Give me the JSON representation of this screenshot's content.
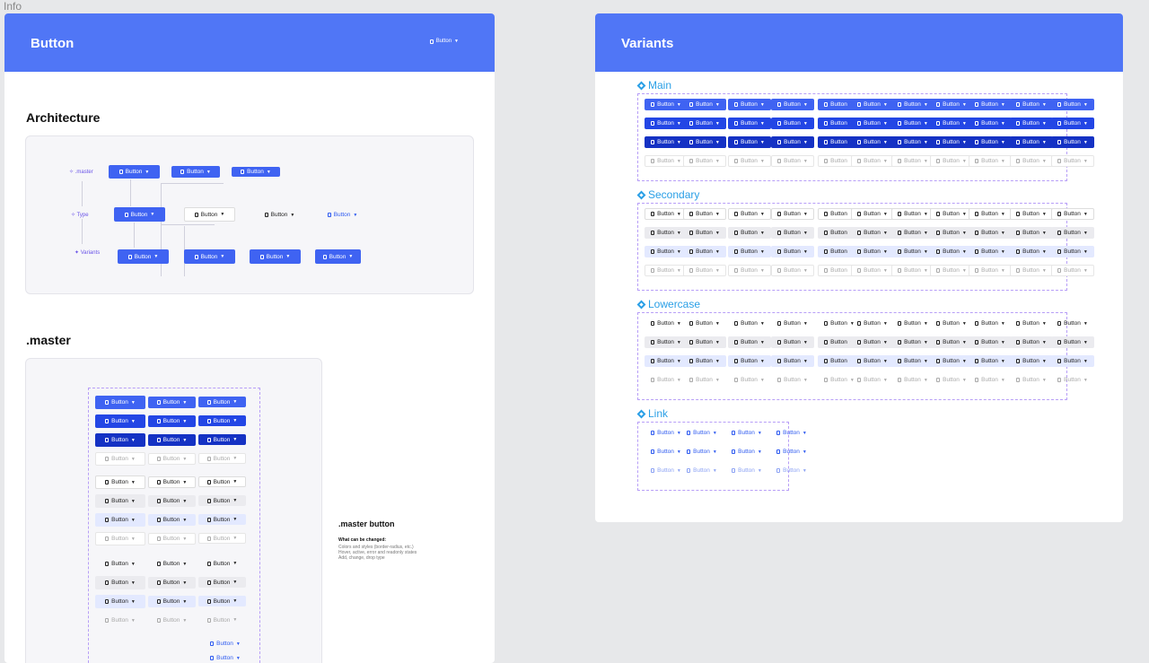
{
  "info_label": "Info",
  "button_frame": {
    "title": "Button",
    "header_button": "Button",
    "architecture_title": "Architecture",
    "arch_labels": {
      "master": "✧ .master",
      "type": "✧ Type",
      "variants": "✦ Variants"
    },
    "button_label": "Button",
    "master_title": ".master",
    "master_side": {
      "title": ".master button",
      "subtitle": "What can be changed:",
      "desc1": "Colors and styles (border-radius, etc.)",
      "desc2": "Hover, active, error and readonly states",
      "desc3": "Add, change, drop type"
    }
  },
  "variants_frame": {
    "title": "Variants",
    "groups": [
      "Main",
      "Secondary",
      "Lowercase",
      "Link"
    ],
    "button_label": "Button"
  },
  "colors": {
    "accent": "#5076f6",
    "primary": "#3f63f2",
    "link": "#2a9fe6",
    "dashed": "#b79ef7"
  },
  "icons": [
    "document-icon",
    "caret-down-icon",
    "diamond-icon"
  ]
}
